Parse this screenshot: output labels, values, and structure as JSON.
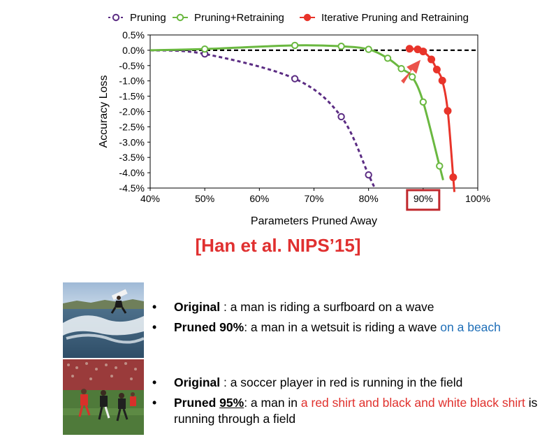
{
  "chart_data": {
    "type": "line",
    "ylabel": "Accuracy Loss",
    "xlabel": "Parameters Pruned Away",
    "xlim": [
      40,
      100
    ],
    "ylim": [
      -4.5,
      0.5
    ],
    "x_ticks": [
      "40%",
      "50%",
      "60%",
      "70%",
      "80%",
      "90%",
      "100%"
    ],
    "y_ticks": [
      "0.5%",
      "0.0%",
      "-0.5%",
      "-1.0%",
      "-1.5%",
      "-2.0%",
      "-2.5%",
      "-3.0%",
      "-3.5%",
      "-4.0%",
      "-4.5%"
    ],
    "baseline": 0,
    "highlighted_x_tick": "90%",
    "legend_position": "top",
    "series": [
      {
        "name": "Pruning",
        "color": "#5b2c83",
        "line_style": "dashed",
        "marker": "open-circle",
        "points": [
          [
            40,
            0.0
          ],
          [
            50,
            -0.12
          ],
          [
            66.5,
            -0.93
          ],
          [
            75,
            -2.17
          ],
          [
            80,
            -4.07
          ]
        ]
      },
      {
        "name": "Pruning+Retraining",
        "color": "#6ab840",
        "line_style": "solid",
        "marker": "open-circle",
        "points": [
          [
            40,
            0.0
          ],
          [
            50,
            0.04
          ],
          [
            66.5,
            0.16
          ],
          [
            75,
            0.13
          ],
          [
            80,
            0.03
          ],
          [
            83.5,
            -0.26
          ],
          [
            86,
            -0.6
          ],
          [
            88,
            -0.87
          ],
          [
            90,
            -1.69
          ],
          [
            93,
            -3.78
          ]
        ]
      },
      {
        "name": "Iterative Pruning and Retraining",
        "color": "#e8342a",
        "line_style": "solid",
        "marker": "filled-circle",
        "points": [
          [
            87.5,
            0.05
          ],
          [
            89,
            0.03
          ],
          [
            90,
            -0.04
          ],
          [
            91.5,
            -0.3
          ],
          [
            92.5,
            -0.63
          ],
          [
            93.5,
            -0.99
          ],
          [
            94.5,
            -1.98
          ],
          [
            95.5,
            -4.15
          ]
        ]
      }
    ]
  },
  "citation": "[Han et al. NIPS’15]",
  "examples": [
    {
      "image_name": "surfing-photo",
      "original_label": "Original",
      "original_text": " : a man is riding a surfboard on a wave",
      "pruned_label": "Pruned 90%",
      "pruned_text": ": a man in a wetsuit is riding a wave ",
      "pruned_highlight": "on a beach"
    },
    {
      "image_name": "soccer-photo",
      "original_label": "Original",
      "original_text": " : a soccer player in red is running in the field",
      "pruned_label_prefix": "Pruned ",
      "pruned_label_underlined": "95%",
      "pruned_text_a": ": a man in ",
      "pruned_highlight": "a red shirt and black and white black shirt",
      "pruned_text_b": " is running through a field"
    }
  ]
}
